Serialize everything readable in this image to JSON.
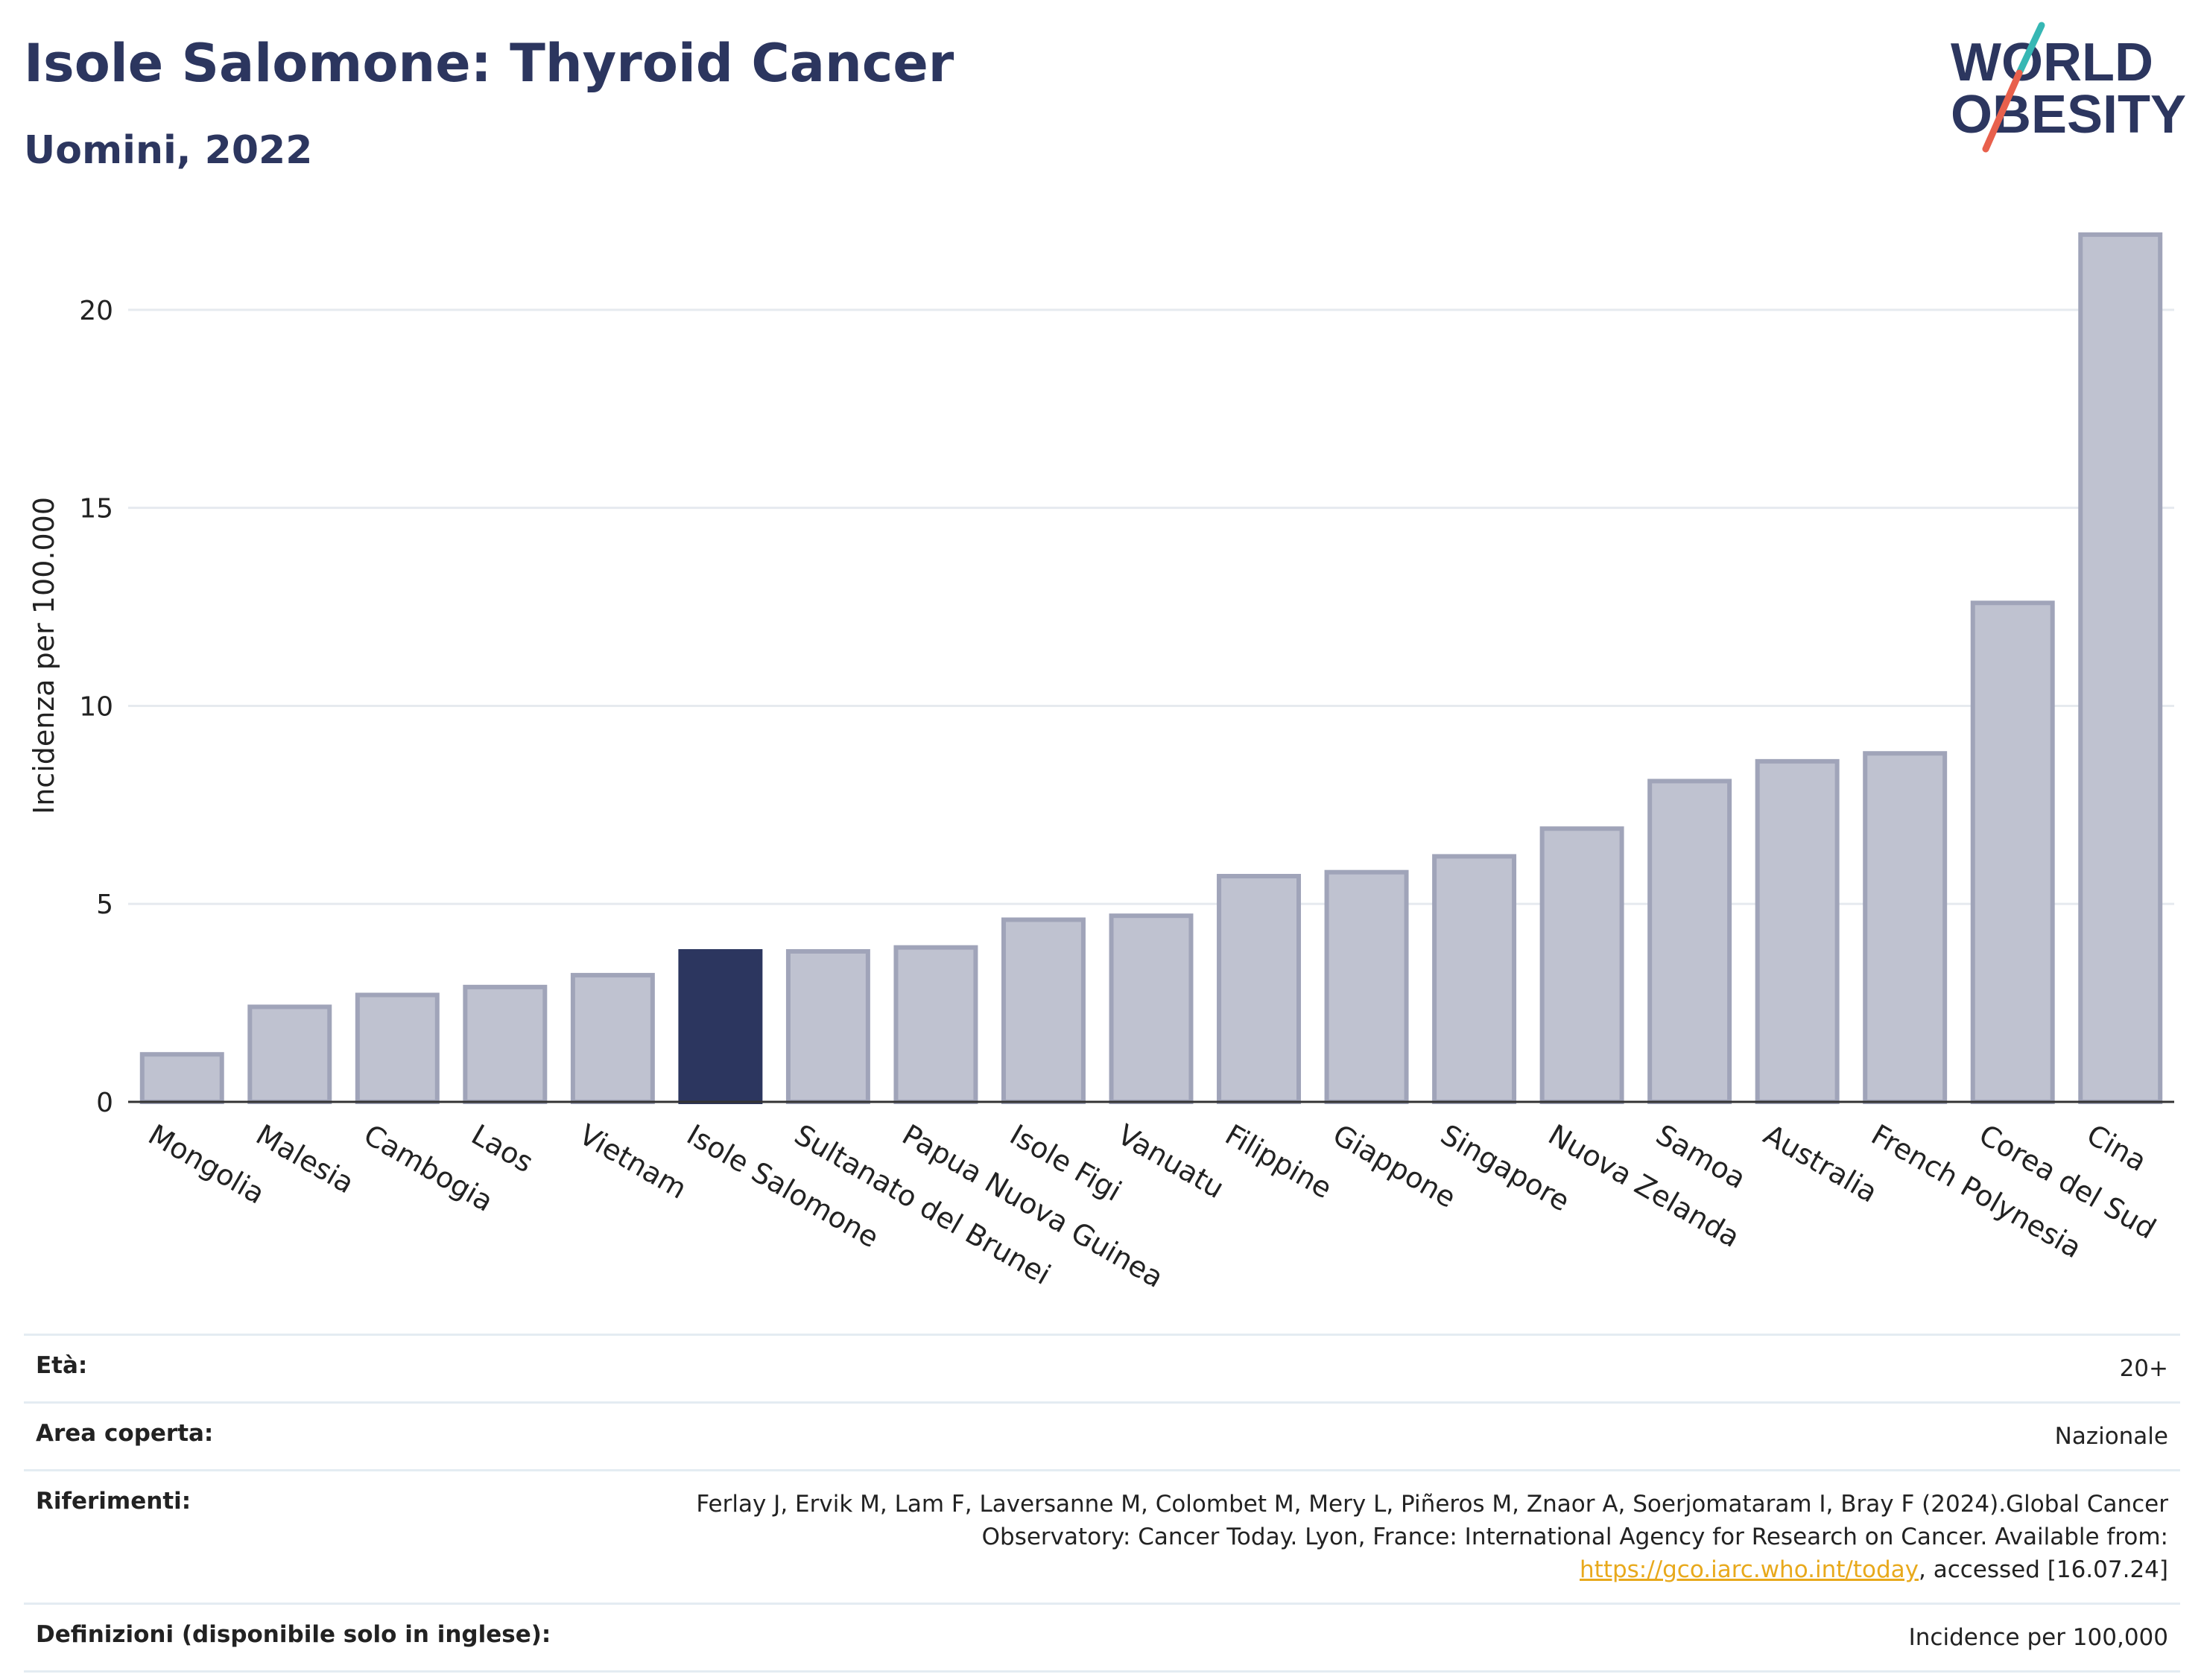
{
  "header": {
    "title": "Isole Salomone: Thyroid Cancer",
    "subtitle": "Uomini, 2022"
  },
  "logo": {
    "line1": "WORLD",
    "line2": "OBESITY"
  },
  "colors": {
    "primary": "#2c365f",
    "bar_muted": "#bfc2d0",
    "bar_outline": "#a0a4b9",
    "grid": "#e6eaef",
    "link": "#e8a91c",
    "logo_accent_teal": "#36b7b4",
    "logo_accent_red": "#e8604c"
  },
  "chart_data": {
    "type": "bar",
    "ylabel": "Incidenza per 100.000",
    "xlabel": "",
    "ylim": [
      0,
      22.5
    ],
    "yticks": [
      0,
      5,
      10,
      15,
      20
    ],
    "grid": true,
    "highlight": "Isole Salomone",
    "categories": [
      "Mongolia",
      "Malesia",
      "Cambogia",
      "Laos",
      "Vietnam",
      "Isole Salomone",
      "Sultanato del Brunei",
      "Papua Nuova Guinea",
      "Isole Figi",
      "Vanuatu",
      "Filippine",
      "Giappone",
      "Singapore",
      "Nuova Zelanda",
      "Samoa",
      "Australia",
      "French Polynesia",
      "Corea del Sud",
      "Cina"
    ],
    "values": [
      1.2,
      2.4,
      2.7,
      2.9,
      3.2,
      3.8,
      3.8,
      3.9,
      4.6,
      4.7,
      5.7,
      5.8,
      6.2,
      6.9,
      8.1,
      8.6,
      8.8,
      12.6,
      21.9
    ]
  },
  "info": {
    "age_label": "Età:",
    "age_value": "20+",
    "area_label": "Area coperta:",
    "area_value": "Nazionale",
    "ref_label": "Riferimenti:",
    "ref_text": "Ferlay J, Ervik M, Lam F, Laversanne M, Colombet M, Mery L, Piñeros M, Znaor A, Soerjomataram I, Bray F (2024).Global Cancer Observatory: Cancer Today. Lyon, France: International Agency for Research on Cancer. Available from: ",
    "ref_link": "https://gco.iarc.who.int/today",
    "ref_tail": ", accessed [16.07.24]",
    "def_label": "Definizioni (disponibile solo in inglese):",
    "def_value": "Incidence per 100,000"
  }
}
